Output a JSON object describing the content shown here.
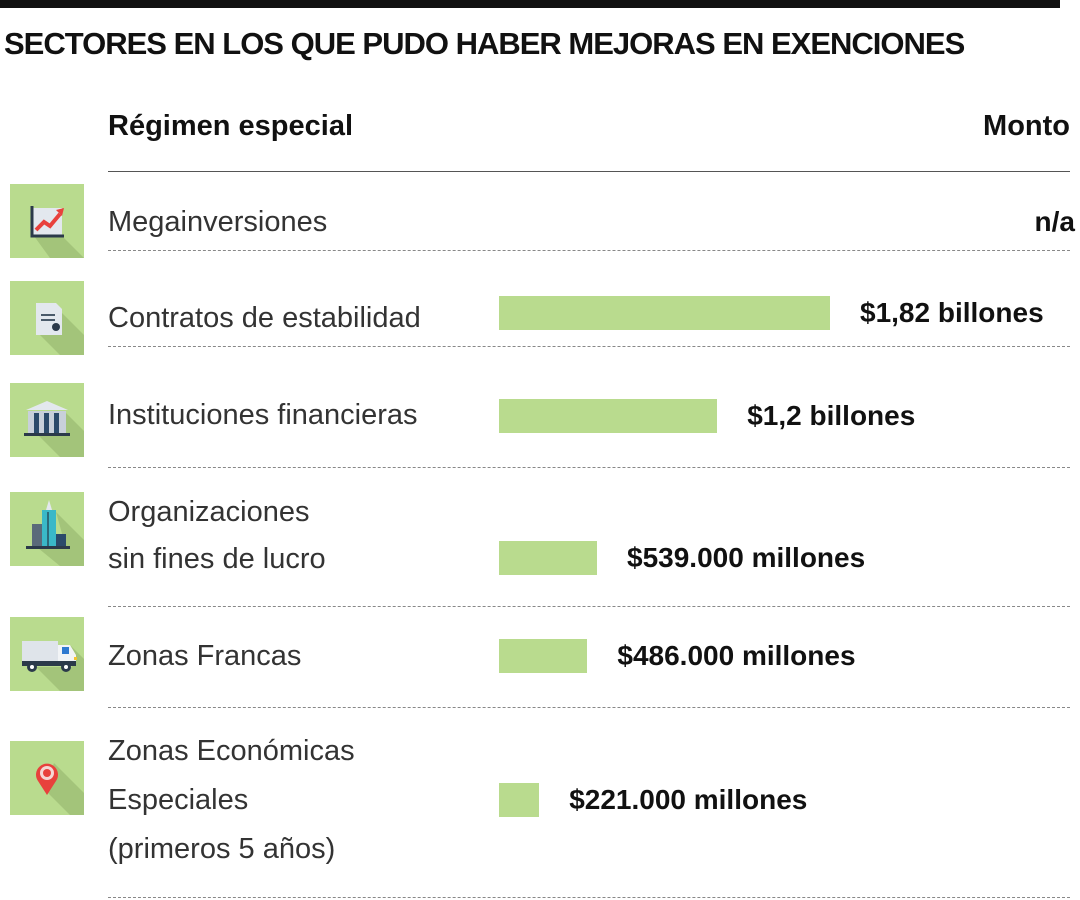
{
  "chart_data": {
    "type": "bar",
    "title": "SECTORES EN LOS QUE PUDO HABER MEJORAS EN EXENCIONES",
    "column_headers": {
      "category": "Régimen especial",
      "value": "Monto"
    },
    "unit": "millones de pesos",
    "bar_color": "#b9db8e",
    "icon_bg_color": "#b9db8e",
    "rows": [
      {
        "label_lines": [
          "Megainversiones"
        ],
        "value": null,
        "amount": "n/a",
        "icon": "chart-growth-icon"
      },
      {
        "label_lines": [
          "Contratos de estabilidad"
        ],
        "value": 1820000,
        "amount": "$1,82 billones",
        "icon": "document-icon"
      },
      {
        "label_lines": [
          "Instituciones financieras"
        ],
        "value": 1200000,
        "amount": "$1,2 billones",
        "icon": "bank-icon"
      },
      {
        "label_lines": [
          "Organizaciones",
          "sin fines de lucro"
        ],
        "value": 539000,
        "amount": "$539.000 millones",
        "icon": "building-icon"
      },
      {
        "label_lines": [
          "Zonas Francas"
        ],
        "value": 486000,
        "amount": "$486.000 millones",
        "icon": "truck-icon"
      },
      {
        "label_lines": [
          "Zonas Económicas",
          "Especiales",
          "(primeros 5 años)"
        ],
        "value": 221000,
        "amount": "$221.000 millones",
        "icon": "location-pin-icon"
      }
    ]
  }
}
